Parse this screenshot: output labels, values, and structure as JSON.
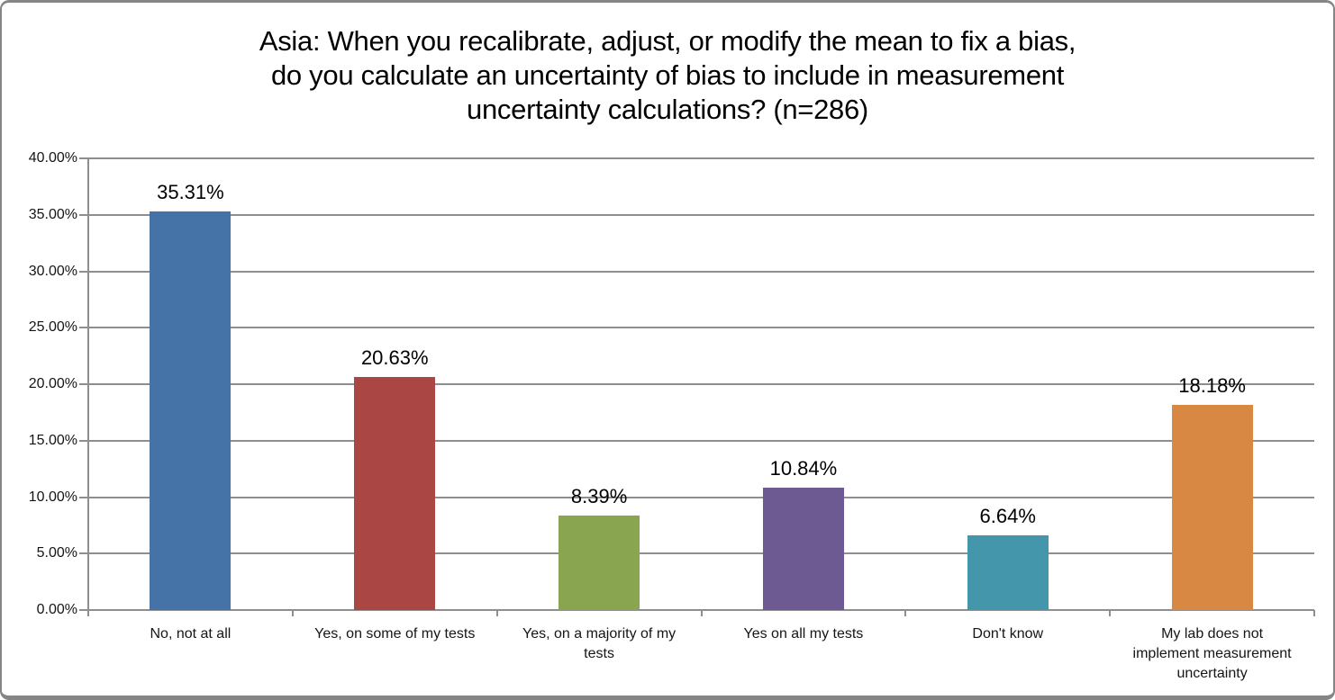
{
  "title_lines": [
    "Asia: When you recalibrate, adjust, or modify the mean to fix a bias,",
    "do you calculate an uncertainty of bias to include in measurement",
    "uncertainty calculations? (n=286)"
  ],
  "chart_data": {
    "type": "bar",
    "title": "Asia: When you recalibrate, adjust, or modify the mean to fix a bias, do you calculate an uncertainty of bias to include in measurement uncertainty calculations? (n=286)",
    "categories": [
      "No, not at all",
      "Yes, on some of my tests",
      "Yes, on a majority of my tests",
      "Yes on all my tests",
      "Don't know",
      "My lab does not implement measurement uncertainty"
    ],
    "category_lines": [
      [
        "No, not at all"
      ],
      [
        "Yes, on some of my tests"
      ],
      [
        "Yes, on a majority of my",
        "tests"
      ],
      [
        "Yes on all my tests"
      ],
      [
        "Don't know"
      ],
      [
        "My lab does not",
        "implement measurement",
        "uncertainty"
      ]
    ],
    "values": [
      35.31,
      20.63,
      8.39,
      10.84,
      6.64,
      18.18
    ],
    "value_labels": [
      "35.31%",
      "20.63%",
      "8.39%",
      "10.84%",
      "6.64%",
      "18.18%"
    ],
    "bar_colors": [
      "#4573A7",
      "#AA4744",
      "#8AA54F",
      "#6E5A92",
      "#4497AB",
      "#D98843"
    ],
    "xlabel": "",
    "ylabel": "",
    "ylim": [
      0,
      40
    ],
    "ytick_step": 5,
    "ytick_labels": [
      "0.00%",
      "5.00%",
      "10.00%",
      "15.00%",
      "20.00%",
      "25.00%",
      "30.00%",
      "35.00%",
      "40.00%"
    ],
    "grid": true,
    "gridline_color": "#8E8E8E",
    "legend_position": "none"
  }
}
